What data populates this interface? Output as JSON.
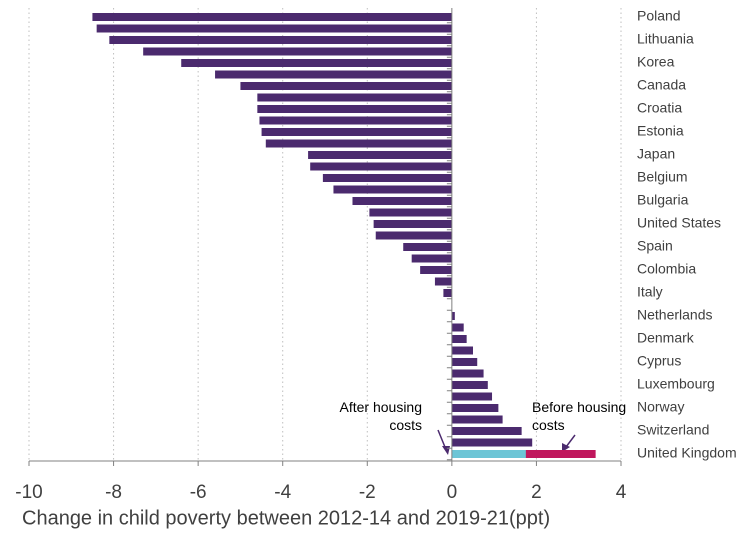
{
  "chart_data": {
    "type": "bar",
    "orientation": "horizontal",
    "x_label": "Change in child poverty between 2012-14 and 2019-21(ppt)",
    "categories": [
      "Poland",
      null,
      "Lithuania",
      null,
      "Korea",
      null,
      "Canada",
      null,
      "Croatia",
      null,
      "Estonia",
      null,
      "Japan",
      null,
      "Belgium",
      null,
      "Bulgaria",
      null,
      "United States",
      null,
      "Spain",
      null,
      "Colombia",
      null,
      "Italy",
      null,
      "Netherlands",
      null,
      "Denmark",
      null,
      "Cyprus",
      null,
      "Luxembourg",
      null,
      "Norway",
      null,
      "Switzerland",
      null,
      "United Kingdom"
    ],
    "values": [
      -8.5,
      -8.4,
      -8.1,
      -7.3,
      -6.4,
      -5.6,
      -5.0,
      -4.6,
      -4.6,
      -4.55,
      -4.5,
      -4.4,
      -3.4,
      -3.35,
      -3.05,
      -2.8,
      -2.35,
      -1.95,
      -1.85,
      -1.8,
      -1.15,
      -0.95,
      -0.75,
      -0.4,
      -0.2,
      0,
      0.07,
      0.28,
      0.35,
      0.5,
      0.6,
      0.75,
      0.85,
      0.95,
      1.1,
      1.2,
      1.65,
      1.9,
      null
    ],
    "color": "#4b2a6e",
    "annotations": [
      {
        "text": "Before housing costs",
        "value": 3.4,
        "color": "#c0175d"
      },
      {
        "text": "After housing costs",
        "value": 1.75,
        "color": "#6cc5d6"
      }
    ],
    "xlim": [
      -10,
      4
    ],
    "xticks": [
      -10,
      -8,
      -6,
      -4,
      -2,
      0,
      2,
      4
    ],
    "grid": true
  }
}
